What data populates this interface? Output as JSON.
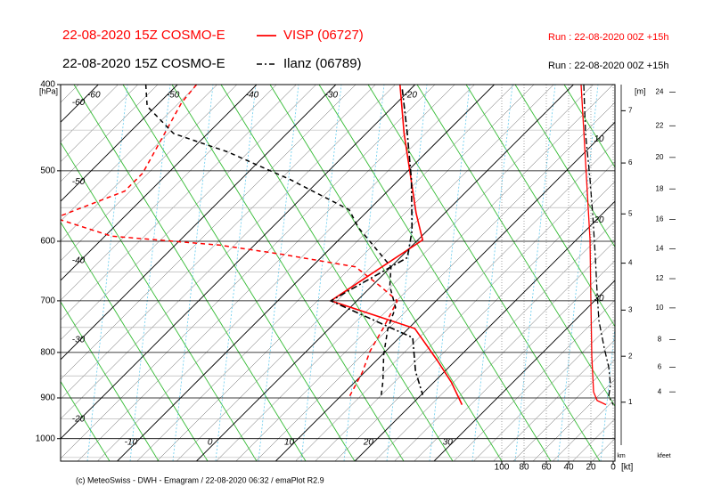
{
  "chart_data": {
    "type": "emagram",
    "y_label": "[hPa]",
    "ylim": [
      1060,
      400
    ],
    "yticks": [
      400,
      500,
      600,
      700,
      800,
      900,
      1000
    ],
    "log_y": true,
    "xlim": [
      -20,
      50
    ],
    "isotherm_ticks_upper": [
      -60,
      -50,
      -40,
      -30,
      -20
    ],
    "isotherm_ticks_lower": [
      -10,
      0,
      10,
      20,
      30
    ],
    "series": [
      {
        "name": "VISP (06727)",
        "model": "22-08-2020 15Z COSMO-E",
        "run": "Run : 22-08-2020 00Z +15h",
        "color": "#ff0000",
        "line_style": "solid",
        "temperature": {
          "pressure": [
            400,
            454,
            498,
            558,
            598,
            656,
            700,
            752,
            816,
            864,
            916
          ],
          "values": [
            -21.9,
            -15.2,
            -10.0,
            -3.6,
            0.6,
            -1.7,
            -3.3,
            10.8,
            17.6,
            22.2,
            26.4
          ]
        },
        "dewpoint": {
          "pressure": [
            400,
            419,
            503,
            527,
            565,
            592,
            606,
            620,
            641,
            674,
            700,
            752,
            797,
            842,
            895
          ],
          "values": [
            -47.6,
            -47.2,
            -43.2,
            -43.2,
            -48.6,
            -39.2,
            -24.4,
            -15.7,
            -4.5,
            1.1,
            5.1,
            6.8,
            8.0,
            9.7,
            11.1
          ]
        },
        "wind_speed": {
          "pressure": [
            400,
            488,
            597,
            700,
            808,
            886,
            906,
            916
          ],
          "values": [
            28.8,
            24.8,
            20.8,
            20,
            19.2,
            17.6,
            14.4,
            6.4
          ]
        }
      },
      {
        "name": "Ilanz (06789)",
        "model": "22-08-2020 15Z COSMO-E",
        "run": "Run : 22-08-2020 00Z +15h",
        "color": "#000000",
        "line_style": "dash-dot",
        "temperature": {
          "pressure": [
            405,
            454,
            511,
            584,
            626,
            700,
            770,
            840,
            893
          ],
          "values": [
            -21.0,
            -14.8,
            -8.5,
            -1.9,
            0.9,
            -3.3,
            11.7,
            16.3,
            20.2
          ]
        },
        "dewpoint": {
          "pressure": [
            400,
            423,
            454,
            476,
            511,
            553,
            579,
            641,
            674,
            712,
            752,
            805,
            861,
            900
          ],
          "values": [
            -54.0,
            -51.1,
            -44.3,
            -35.2,
            -23.9,
            -12.5,
            -9.1,
            0.0,
            2.3,
            5.7,
            7.4,
            10.2,
            13.4,
            15.3
          ]
        },
        "wind_speed": {
          "pressure": [
            400,
            454,
            511,
            559,
            625,
            686,
            737,
            791,
            831,
            870,
            896,
            916
          ],
          "values": [
            26.4,
            24.8,
            20.8,
            18.4,
            16,
            14.4,
            12.8,
            8,
            4,
            2.4,
            4,
            0
          ]
        }
      }
    ],
    "wind_axis": {
      "label": "[kt]",
      "xlim": [
        0,
        100
      ],
      "xticks": [
        100,
        80,
        60,
        40,
        20,
        0
      ]
    },
    "profile_ticks": {
      "values": [
        10,
        20,
        30
      ],
      "pressure": [
        461,
        568,
        696
      ]
    },
    "height_axis": {
      "label": "[m]",
      "unit": "km",
      "ticks": [
        1,
        2,
        3,
        4,
        5,
        6,
        7
      ],
      "pressure": [
        910,
        808,
        717,
        635,
        559,
        490,
        428
      ]
    },
    "kfeet_axis": {
      "label": "kfeet",
      "ticks": [
        4,
        6,
        8,
        10,
        12,
        14,
        16,
        18,
        20,
        22,
        24
      ],
      "pressure": [
        886,
        831,
        774,
        713,
        661,
        612,
        567,
        524,
        483,
        445,
        408
      ]
    },
    "footer": "(c) MeteoSwiss - DWH - Emagram / 22-08-2020  06:32 / emaPlot R2.9"
  }
}
